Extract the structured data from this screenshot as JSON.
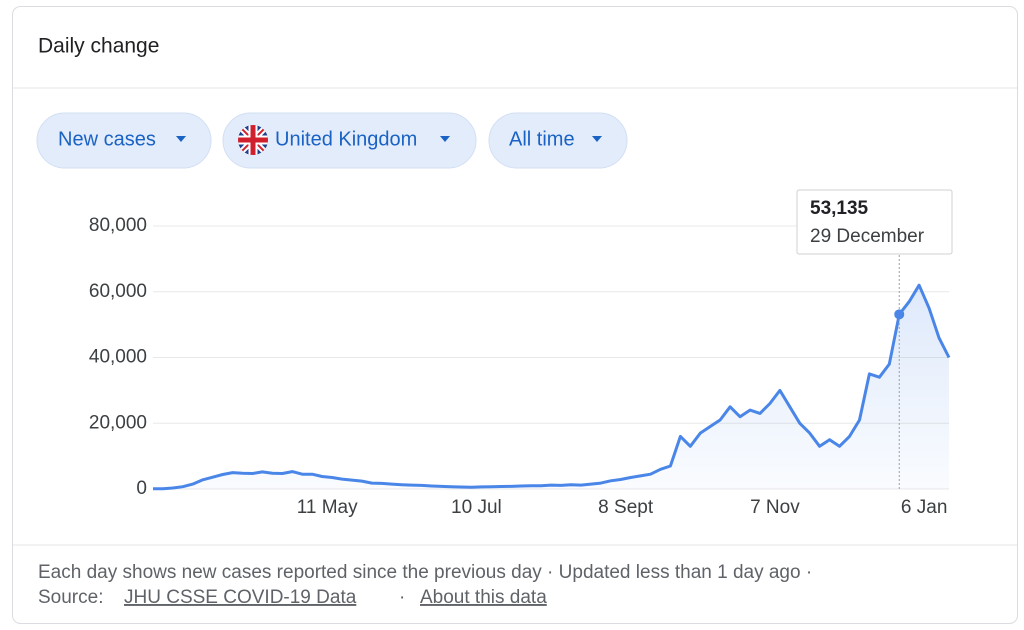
{
  "header": {
    "title": "Daily change"
  },
  "filters": [
    "New cases",
    "United Kingdom",
    "All time"
  ],
  "chart_data": {
    "type": "line",
    "categories": [
      null,
      null,
      null,
      null,
      null,
      null,
      null,
      null,
      null,
      null,
      null,
      null,
      null,
      null,
      null,
      null,
      null,
      "11 May",
      null,
      null,
      null,
      null,
      null,
      null,
      null,
      null,
      null,
      null,
      null,
      null,
      null,
      null,
      "10 Jul",
      null,
      null,
      null,
      null,
      null,
      null,
      null,
      null,
      null,
      null,
      null,
      null,
      null,
      null,
      "8 Sept",
      null,
      null,
      null,
      null,
      null,
      null,
      null,
      null,
      null,
      null,
      null,
      null,
      null,
      null,
      "7 Nov",
      null,
      null,
      null,
      null,
      null,
      null,
      null,
      null,
      null,
      null,
      null,
      null,
      null,
      null,
      "6 Jan",
      null,
      null,
      null
    ],
    "series": [
      {
        "name": "New cases",
        "color": "#4a86e8",
        "values": [
          50,
          100,
          300,
          700,
          1500,
          2800,
          3600,
          4400,
          5000,
          4800,
          4700,
          5200,
          4800,
          4700,
          5300,
          4500,
          4500,
          3800,
          3500,
          3000,
          2700,
          2400,
          1800,
          1700,
          1500,
          1300,
          1200,
          1100,
          900,
          800,
          700,
          600,
          550,
          650,
          700,
          750,
          800,
          900,
          1000,
          1000,
          1200,
          1100,
          1300,
          1200,
          1500,
          1800,
          2500,
          2900,
          3500,
          4000,
          4500,
          6000,
          7000,
          16000,
          13000,
          17000,
          19000,
          21000,
          25000,
          22000,
          24000,
          23000,
          26000,
          30000,
          25000,
          20000,
          17000,
          13000,
          15000,
          13000,
          16000,
          21000,
          35000,
          34000,
          38000,
          53135,
          57000,
          62000,
          55000,
          46000,
          40000
        ]
      }
    ],
    "ylim": [
      0,
      80000
    ],
    "yticks": [
      0,
      {
        "value": 20000,
        "label": "20,000"
      },
      {
        "value": 40000,
        "label": "40,000"
      },
      {
        "value": 60000,
        "label": "60,000"
      },
      {
        "value": 80000,
        "label": "80,000"
      }
    ],
    "grid": true,
    "tooltip": {
      "value": 53135,
      "value_label": "53,135",
      "date": "29 December"
    }
  },
  "footer": {
    "note": "Each day shows new cases reported since the previous day · Updated less than 1 day ago ·",
    "source_label": "Source:",
    "source_link": "JHU CSSE COVID-19 Data",
    "separator": "·",
    "about_link": "About this data"
  }
}
